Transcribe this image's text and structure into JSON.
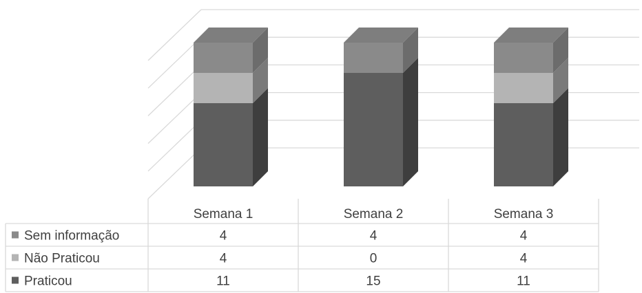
{
  "chart_data": {
    "type": "bar",
    "stacked": true,
    "three_d": true,
    "categories": [
      "Semana 1",
      "Semana 2",
      "Semana 3"
    ],
    "series": [
      {
        "name": "Sem informação",
        "values": [
          4,
          4,
          4
        ],
        "color": "#8a8a8a",
        "side_color": "#6c6c6c",
        "top_color": "#7e7e7e"
      },
      {
        "name": "Não Praticou",
        "values": [
          4,
          0,
          4
        ],
        "color": "#b4b4b4",
        "side_color": "#7a7a7a",
        "top_color": "#a4a4a4"
      },
      {
        "name": "Praticou",
        "values": [
          11,
          15,
          11
        ],
        "color": "#5e5e5e",
        "side_color": "#3e3e3e",
        "top_color": "#555555"
      }
    ],
    "ylim": [
      0,
      20
    ],
    "grid": true,
    "data_table": true,
    "legend_placement": "data-table-left"
  }
}
